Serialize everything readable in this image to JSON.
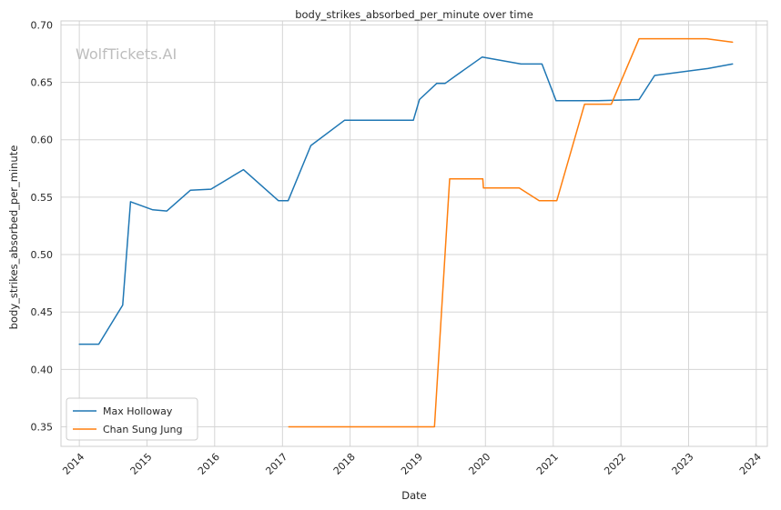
{
  "chart_data": {
    "type": "line",
    "title": "body_strikes_absorbed_per_minute over time",
    "xlabel": "Date",
    "ylabel": "body_strikes_absorbed_per_minute",
    "watermark": "WolfTickets.AI",
    "x_ticks": [
      "2014",
      "2015",
      "2016",
      "2017",
      "2018",
      "2019",
      "2020",
      "2021",
      "2022",
      "2023",
      "2024"
    ],
    "y_ticks": [
      "0.35",
      "0.40",
      "0.45",
      "0.50",
      "0.55",
      "0.60",
      "0.65",
      "0.70"
    ],
    "xlim": [
      "2013-09-24",
      "2024-03-01"
    ],
    "ylim": [
      0.333,
      0.7035
    ],
    "grid": true,
    "legend_position": "lower-left",
    "series": [
      {
        "name": "Max Holloway",
        "color": "#1f77b4",
        "points": [
          [
            "2014-01-01",
            0.422
          ],
          [
            "2014-04-16",
            0.422
          ],
          [
            "2014-08-23",
            0.456
          ],
          [
            "2014-10-04",
            0.546
          ],
          [
            "2015-02-01",
            0.539
          ],
          [
            "2015-04-18",
            0.538
          ],
          [
            "2015-08-23",
            0.556
          ],
          [
            "2015-12-12",
            0.557
          ],
          [
            "2016-06-04",
            0.574
          ],
          [
            "2016-12-10",
            0.547
          ],
          [
            "2017-02-01",
            0.547
          ],
          [
            "2017-06-03",
            0.595
          ],
          [
            "2017-12-02",
            0.617
          ],
          [
            "2018-12-08",
            0.617
          ],
          [
            "2019-01-10",
            0.635
          ],
          [
            "2019-04-13",
            0.649
          ],
          [
            "2019-05-28",
            0.649
          ],
          [
            "2019-07-27",
            0.656
          ],
          [
            "2019-12-14",
            0.672
          ],
          [
            "2020-07-11",
            0.666
          ],
          [
            "2020-11-01",
            0.666
          ],
          [
            "2021-01-16",
            0.634
          ],
          [
            "2021-09-01",
            0.634
          ],
          [
            "2022-04-09",
            0.635
          ],
          [
            "2022-07-02",
            0.656
          ],
          [
            "2023-04-15",
            0.662
          ],
          [
            "2023-08-26",
            0.666
          ]
        ]
      },
      {
        "name": "Chan Sung Jung",
        "color": "#ff7f0e",
        "points": [
          [
            "2017-02-04",
            0.35
          ],
          [
            "2019-04-01",
            0.35
          ],
          [
            "2019-06-22",
            0.566
          ],
          [
            "2019-12-18",
            0.566
          ],
          [
            "2019-12-21",
            0.558
          ],
          [
            "2020-07-01",
            0.558
          ],
          [
            "2020-10-17",
            0.547
          ],
          [
            "2021-01-20",
            0.547
          ],
          [
            "2021-06-19",
            0.631
          ],
          [
            "2021-11-10",
            0.631
          ],
          [
            "2022-04-09",
            0.688
          ],
          [
            "2023-04-08",
            0.688
          ],
          [
            "2023-08-26",
            0.685
          ]
        ]
      }
    ]
  }
}
